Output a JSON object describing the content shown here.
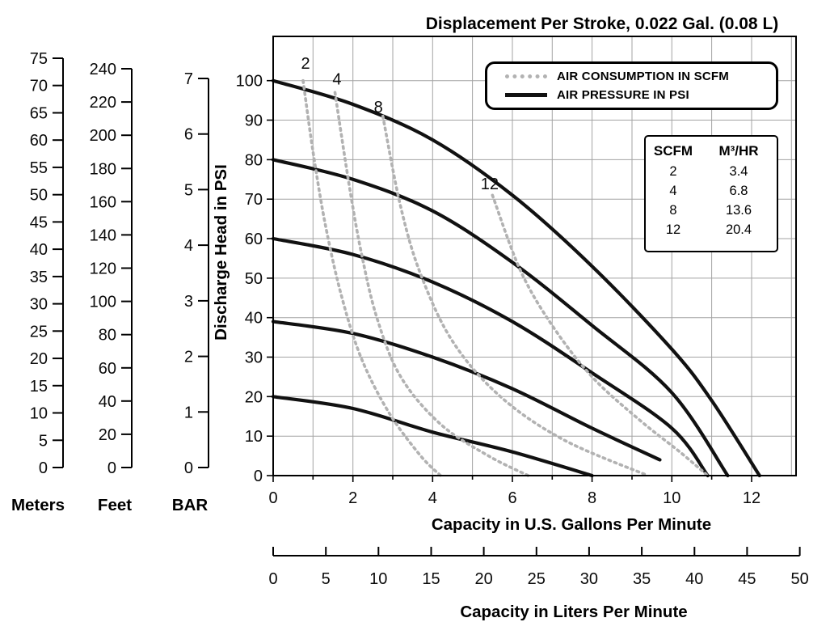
{
  "title": "Displacement Per Stroke, 0.022 Gal. (0.08 L)",
  "colors": {
    "pressure_line": "#111111",
    "consumption_line": "#b2b2b2",
    "grid_line": "#a3a3a3",
    "axis": "#000000"
  },
  "legend": {
    "items": [
      {
        "id": "air-consumption",
        "label": "AIR CONSUMPTION IN SCFM",
        "line_style": "dotted",
        "color": "#b2b2b2"
      },
      {
        "id": "air-pressure",
        "label": "AIR PRESSURE IN PSI",
        "line_style": "solid",
        "color": "#111111"
      }
    ]
  },
  "scfm_table": {
    "col1_header": "SCFM",
    "col2_header": "M³/HR",
    "rows": [
      {
        "scfm": "2",
        "m3hr": "3.4"
      },
      {
        "scfm": "4",
        "m3hr": "6.8"
      },
      {
        "scfm": "8",
        "m3hr": "13.6"
      },
      {
        "scfm": "12",
        "m3hr": "20.4"
      }
    ]
  },
  "scales": [
    {
      "id": "meters",
      "label": "Meters",
      "ticks": [
        75,
        70,
        65,
        60,
        55,
        50,
        45,
        40,
        35,
        30,
        25,
        20,
        15,
        10,
        5,
        0
      ]
    },
    {
      "id": "feet",
      "label": "Feet",
      "ticks": [
        240,
        220,
        200,
        180,
        160,
        140,
        120,
        100,
        80,
        60,
        40,
        20,
        0
      ]
    },
    {
      "id": "bar",
      "label": "BAR",
      "ticks": [
        7,
        6,
        5,
        4,
        3,
        2,
        1,
        0
      ]
    }
  ],
  "chart_data": {
    "type": "line",
    "title": "Displacement Per Stroke, 0.022 Gal. (0.08 L)",
    "xlabel": "Capacity in U.S. Gallons Per Minute",
    "xlabel_secondary": "Capacity in Liters Per Minute",
    "ylabel": "Discharge Head in PSI",
    "xlim_gpm": [
      0,
      13.1
    ],
    "ylim_psi": [
      0,
      111
    ],
    "x_ticks_gpm": [
      0,
      2,
      4,
      6,
      8,
      10,
      12
    ],
    "y_ticks_psi": [
      0,
      10,
      20,
      30,
      40,
      50,
      60,
      70,
      80,
      90,
      100
    ],
    "liters_ticks": [
      0,
      5,
      10,
      15,
      20,
      25,
      30,
      35,
      40,
      45,
      50
    ],
    "grid": "on",
    "legend_position": "top-right-inside",
    "series": [
      {
        "name": "air-pressure-100-psi",
        "type": "pressure",
        "points_gpm_psi": [
          [
            0,
            100
          ],
          [
            2,
            94
          ],
          [
            4,
            85
          ],
          [
            6,
            71
          ],
          [
            8,
            53
          ],
          [
            10,
            32
          ],
          [
            11,
            19
          ],
          [
            12.2,
            0
          ]
        ]
      },
      {
        "name": "air-pressure-80-psi",
        "type": "pressure",
        "points_gpm_psi": [
          [
            0,
            80
          ],
          [
            2,
            75
          ],
          [
            4,
            67
          ],
          [
            6,
            54
          ],
          [
            8,
            38
          ],
          [
            10,
            21
          ],
          [
            11.4,
            0
          ]
        ]
      },
      {
        "name": "air-pressure-60-psi",
        "type": "pressure",
        "points_gpm_psi": [
          [
            0,
            60
          ],
          [
            2,
            56
          ],
          [
            4,
            49
          ],
          [
            6,
            39
          ],
          [
            8,
            26
          ],
          [
            10,
            12
          ],
          [
            10.9,
            0
          ]
        ]
      },
      {
        "name": "air-pressure-40-psi",
        "type": "pressure",
        "points_gpm_psi": [
          [
            0,
            39
          ],
          [
            2,
            36
          ],
          [
            4,
            30
          ],
          [
            6,
            22
          ],
          [
            8,
            12
          ],
          [
            9.7,
            4
          ]
        ]
      },
      {
        "name": "air-pressure-20-psi",
        "type": "pressure",
        "points_gpm_psi": [
          [
            0,
            20
          ],
          [
            2,
            17
          ],
          [
            4,
            11
          ],
          [
            6,
            6
          ],
          [
            8,
            0
          ]
        ]
      },
      {
        "name": "air-consumption-2-scfm",
        "type": "consumption",
        "label": "2",
        "label_at_gpm_psi": [
          0.81,
          103
        ],
        "points_gpm_psi": [
          [
            0.75,
            100
          ],
          [
            1.0,
            82
          ],
          [
            1.3,
            64
          ],
          [
            1.7,
            46
          ],
          [
            2.2,
            30
          ],
          [
            2.9,
            16
          ],
          [
            3.7,
            5
          ],
          [
            4.2,
            0
          ]
        ]
      },
      {
        "name": "air-consumption-4-scfm",
        "type": "consumption",
        "label": "4",
        "label_at_gpm_psi": [
          1.6,
          99
        ],
        "points_gpm_psi": [
          [
            1.55,
            97
          ],
          [
            1.9,
            74
          ],
          [
            2.2,
            57
          ],
          [
            2.6,
            40
          ],
          [
            3.2,
            25
          ],
          [
            4.2,
            13
          ],
          [
            5.4,
            5
          ],
          [
            6.4,
            0
          ]
        ]
      },
      {
        "name": "air-consumption-8-scfm",
        "type": "consumption",
        "label": "8",
        "label_at_gpm_psi": [
          2.64,
          92
        ],
        "points_gpm_psi": [
          [
            2.75,
            91
          ],
          [
            3.2,
            68
          ],
          [
            3.7,
            51
          ],
          [
            4.5,
            34
          ],
          [
            5.7,
            20
          ],
          [
            7.3,
            9
          ],
          [
            9.4,
            0
          ]
        ]
      },
      {
        "name": "air-consumption-12-scfm",
        "type": "consumption",
        "label": "12",
        "label_at_gpm_psi": [
          5.43,
          72.5
        ],
        "points_gpm_psi": [
          [
            5.5,
            71
          ],
          [
            6.2,
            52
          ],
          [
            7.0,
            38
          ],
          [
            8.0,
            25
          ],
          [
            9.2,
            14
          ],
          [
            10.2,
            6
          ],
          [
            10.9,
            0
          ]
        ]
      }
    ]
  }
}
